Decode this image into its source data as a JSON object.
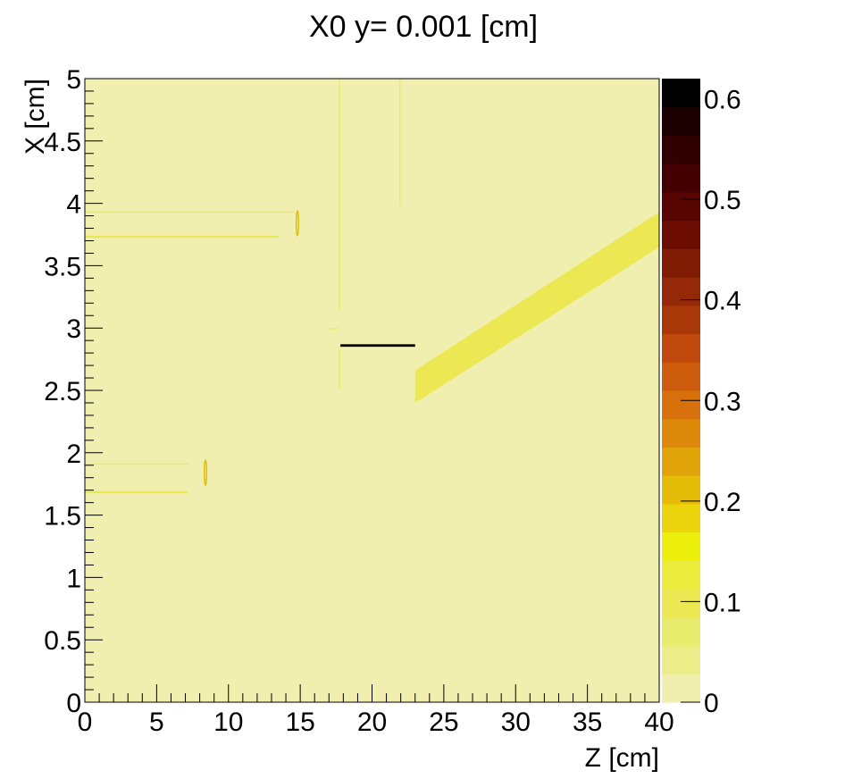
{
  "chart_data": {
    "type": "heatmap",
    "title": "X0 y=  0.001 [cm]",
    "xlabel": "Z [cm]",
    "ylabel": "X [cm]",
    "xlim": [
      0,
      40
    ],
    "ylim": [
      0,
      5
    ],
    "x_ticks": [
      "0",
      "5",
      "10",
      "15",
      "20",
      "25",
      "30",
      "35",
      "40"
    ],
    "y_ticks": [
      "0",
      "0.5",
      "1",
      "1.5",
      "2",
      "2.5",
      "3",
      "3.5",
      "4",
      "4.5",
      "5"
    ],
    "z_range": [
      0,
      0.62
    ],
    "z_ticks": [
      "0",
      "0.1",
      "0.2",
      "0.3",
      "0.4",
      "0.5",
      "0.6"
    ],
    "background_value": 0.02,
    "palette": [
      "#f0efb0",
      "#ecec88",
      "#e8ec6c",
      "#ece854",
      "#ecec3c",
      "#ecf00c",
      "#ecd40c",
      "#e4bc08",
      "#e0a408",
      "#dc8808",
      "#d8700c",
      "#cc5c0c",
      "#c0480c",
      "#a83808",
      "#942808",
      "#801c04",
      "#6c0c00",
      "#580400",
      "#440000",
      "#300000",
      "#1c0000",
      "#000000"
    ],
    "features": [
      {
        "name": "tilted-band",
        "shape": "polygon",
        "points": [
          [
            23.0,
            2.4
          ],
          [
            40.0,
            3.65
          ],
          [
            40.0,
            3.93
          ],
          [
            23.0,
            2.66
          ]
        ],
        "value": 0.1
      },
      {
        "name": "dark-strip",
        "shape": "rect",
        "z": [
          17.8,
          23.0
        ],
        "x": [
          2.85,
          2.87
        ],
        "value": 0.6
      },
      {
        "name": "upper-ring",
        "shape": "ellipse",
        "z": 14.8,
        "x": 3.84,
        "rz": 0.08,
        "rx": 0.1,
        "value": 0.22
      },
      {
        "name": "lower-ring",
        "shape": "ellipse",
        "z": 8.4,
        "x": 1.84,
        "rz": 0.08,
        "rx": 0.1,
        "value": 0.22
      },
      {
        "name": "upper-line-top",
        "shape": "rect",
        "z": [
          0,
          14.6
        ],
        "x": [
          3.925,
          3.935
        ],
        "value": 0.1
      },
      {
        "name": "upper-line-bottom",
        "shape": "rect",
        "z": [
          0,
          13.5
        ],
        "x": [
          3.725,
          3.74
        ],
        "value": 0.1
      },
      {
        "name": "lower-line-top",
        "shape": "rect",
        "z": [
          0,
          7.2
        ],
        "x": [
          1.905,
          1.915
        ],
        "value": 0.08
      },
      {
        "name": "lower-line-bottom",
        "shape": "rect",
        "z": [
          0,
          7.2
        ],
        "x": [
          1.675,
          1.69
        ],
        "value": 0.1
      },
      {
        "name": "vertical-line-a",
        "shape": "rect",
        "z": [
          17.7,
          17.78
        ],
        "x": [
          3.15,
          5.0
        ],
        "value": 0.08
      },
      {
        "name": "vertical-line-b",
        "shape": "rect",
        "z": [
          17.7,
          17.78
        ],
        "x": [
          2.5,
          2.86
        ],
        "value": 0.08
      },
      {
        "name": "vertical-line-c",
        "shape": "rect",
        "z": [
          21.9,
          21.98
        ],
        "x": [
          3.98,
          5.0
        ],
        "value": 0.08
      },
      {
        "name": "short-segment",
        "shape": "rect",
        "z": [
          16.8,
          17.7
        ],
        "x": [
          2.99,
          3.0
        ],
        "value": 0.08
      }
    ]
  }
}
